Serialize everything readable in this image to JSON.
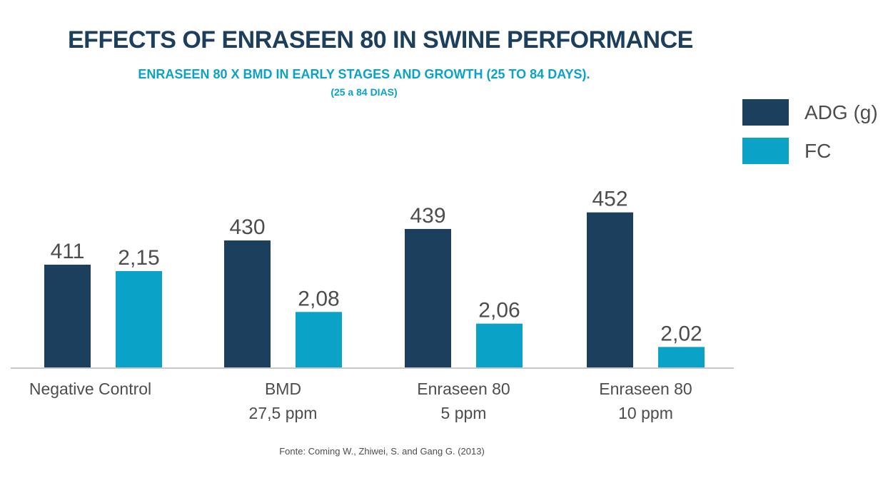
{
  "chart_data": {
    "type": "bar",
    "title": "EFFECTS OF ENRASEEN 80 IN SWINE PERFORMANCE",
    "subtitle": "ENRASEEN 80 X BMD IN EARLY STAGES AND GROWTH (25 TO 84 DAYS).",
    "subtitle2": "(25 a 84 DIAS)",
    "categories": [
      [
        "Negative Control"
      ],
      [
        "BMD",
        "27,5 ppm"
      ],
      [
        "Enraseen 80",
        "5 ppm"
      ],
      [
        "Enraseen 80",
        "10 ppm"
      ]
    ],
    "series": [
      {
        "name": "ADG (g)",
        "color": "#1c3f5e",
        "values": [
          411,
          430,
          439,
          452
        ],
        "labels": [
          "411",
          "430",
          "439",
          "452"
        ]
      },
      {
        "name": "FC",
        "color": "#0aa3c7",
        "values": [
          2.15,
          2.08,
          2.06,
          2.02
        ],
        "labels": [
          "2,15",
          "2,08",
          "2,06",
          "2,02"
        ]
      }
    ],
    "legend_position": "top-right",
    "grid": false,
    "source": "Fonte: Coming W., Zhiwei, S. and Gang G. (2013)"
  }
}
